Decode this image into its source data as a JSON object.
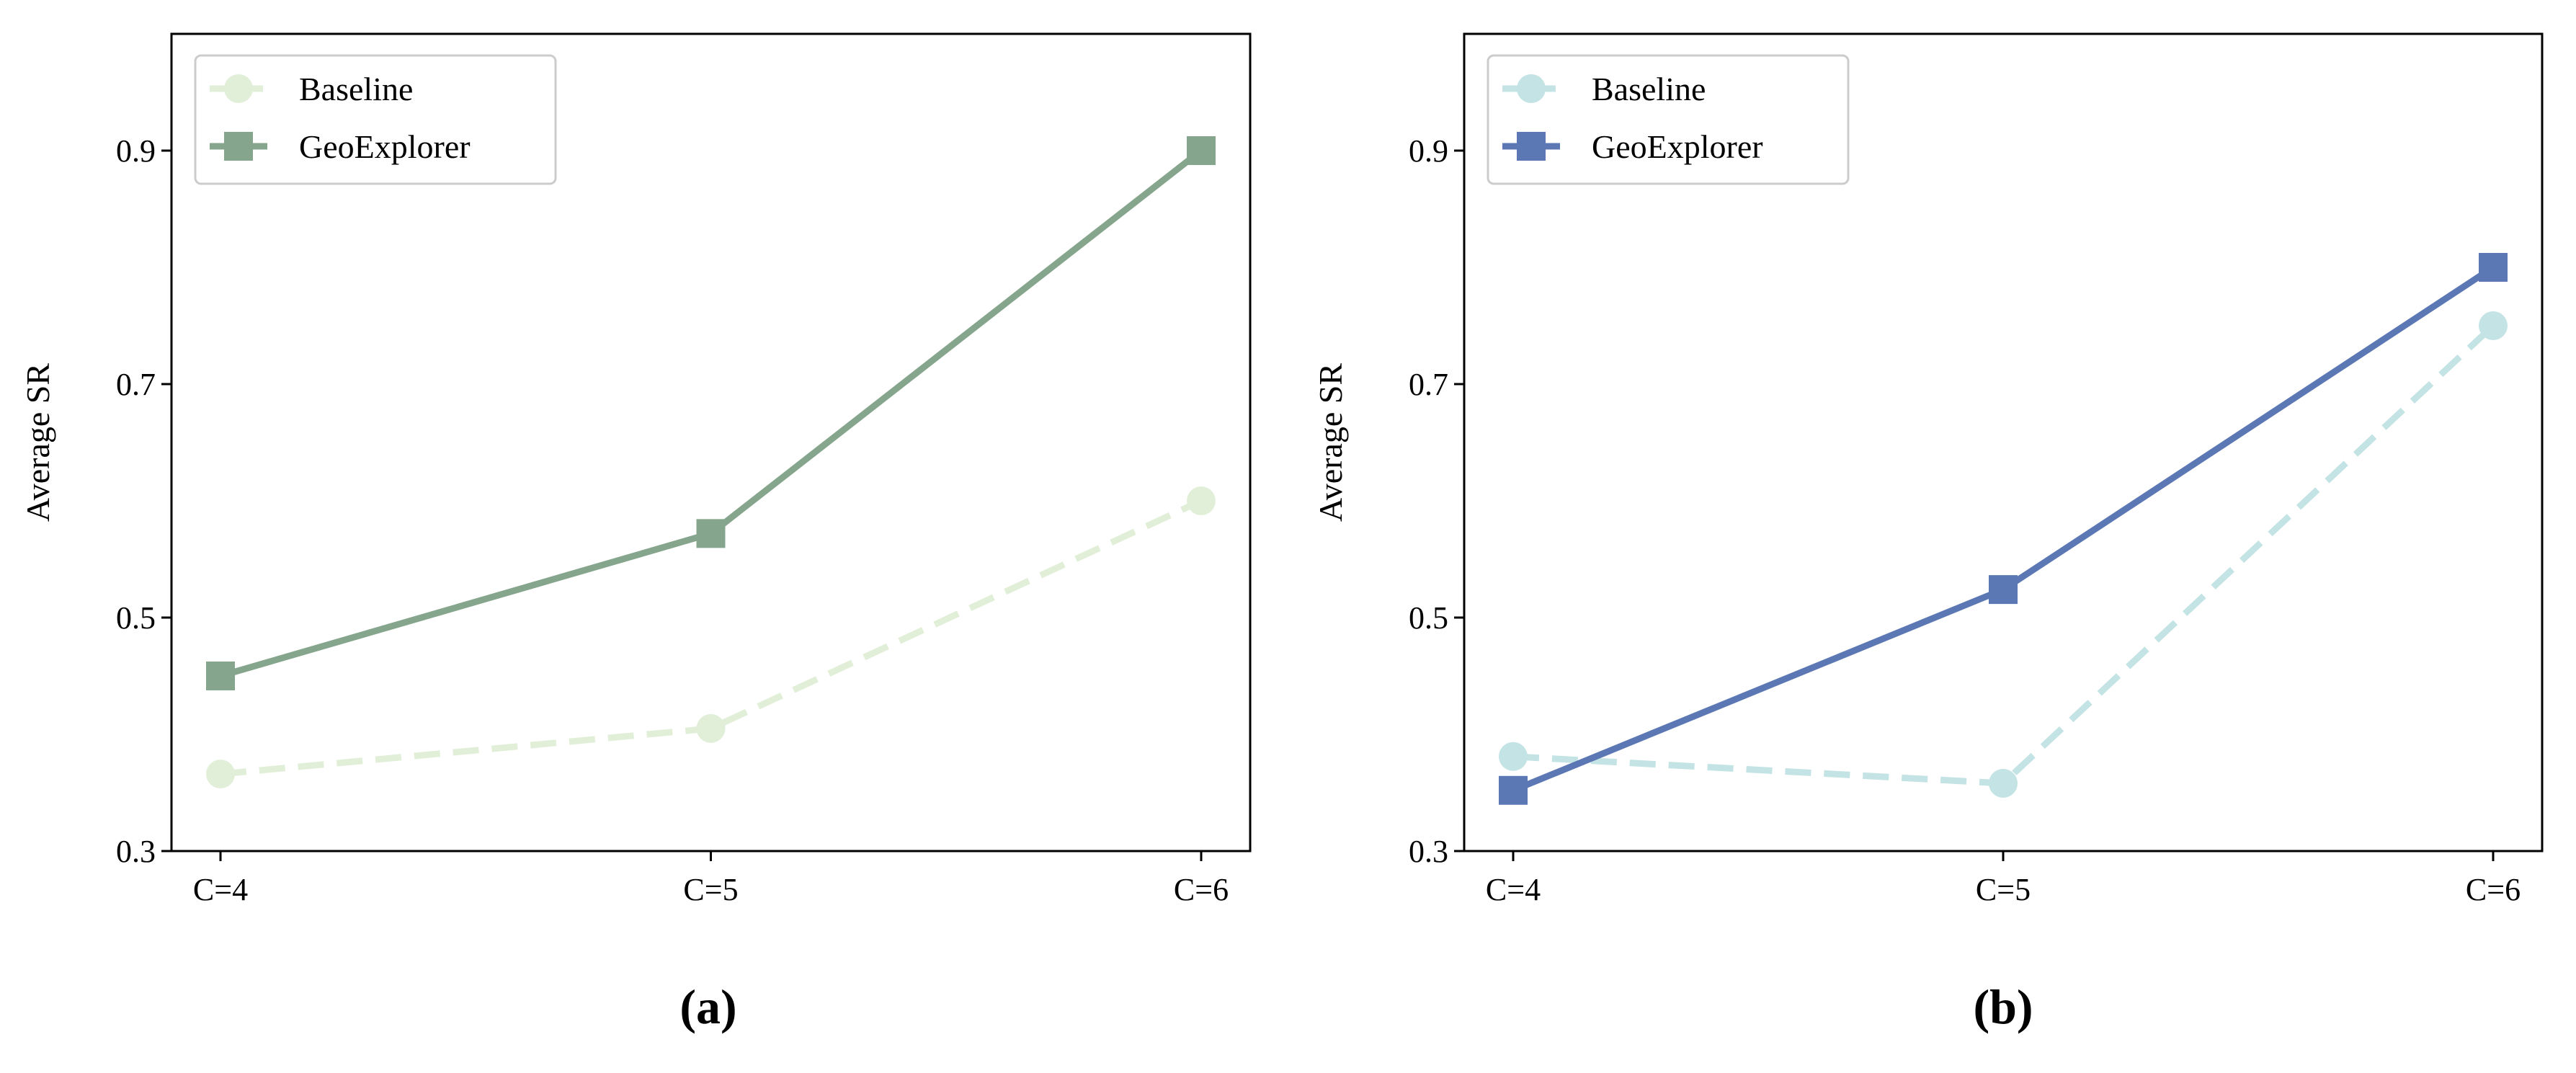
{
  "chart_data": [
    {
      "type": "line",
      "caption": "(a)",
      "categories": [
        "C=4",
        "C=5",
        "C=6"
      ],
      "ylabel": "Average SR",
      "xlabel": "",
      "ylim": [
        0.3,
        1.0
      ],
      "yticks": [
        "0.3",
        "0.5",
        "0.7",
        "0.9"
      ],
      "grid": false,
      "legend_position": "top-left",
      "series": [
        {
          "name": "Baseline",
          "values": [
            0.366,
            0.405,
            0.6
          ],
          "color": "#e2efd8",
          "style": "dashed",
          "marker": "circle"
        },
        {
          "name": "GeoExplorer",
          "values": [
            0.45,
            0.572,
            0.9
          ],
          "color": "#85a58c",
          "style": "solid",
          "marker": "square"
        }
      ]
    },
    {
      "type": "line",
      "caption": "(b)",
      "categories": [
        "C=4",
        "C=5",
        "C=6"
      ],
      "ylabel": "Average SR",
      "xlabel": "",
      "ylim": [
        0.3,
        1.0
      ],
      "yticks": [
        "0.3",
        "0.5",
        "0.7",
        "0.9"
      ],
      "grid": false,
      "legend_position": "top-left",
      "series": [
        {
          "name": "Baseline",
          "values": [
            0.381,
            0.358,
            0.75
          ],
          "color": "#c4e3e4",
          "style": "dashed",
          "marker": "circle"
        },
        {
          "name": "GeoExplorer",
          "values": [
            0.352,
            0.524,
            0.8
          ],
          "color": "#5c78b4",
          "style": "solid",
          "marker": "square"
        }
      ]
    }
  ]
}
